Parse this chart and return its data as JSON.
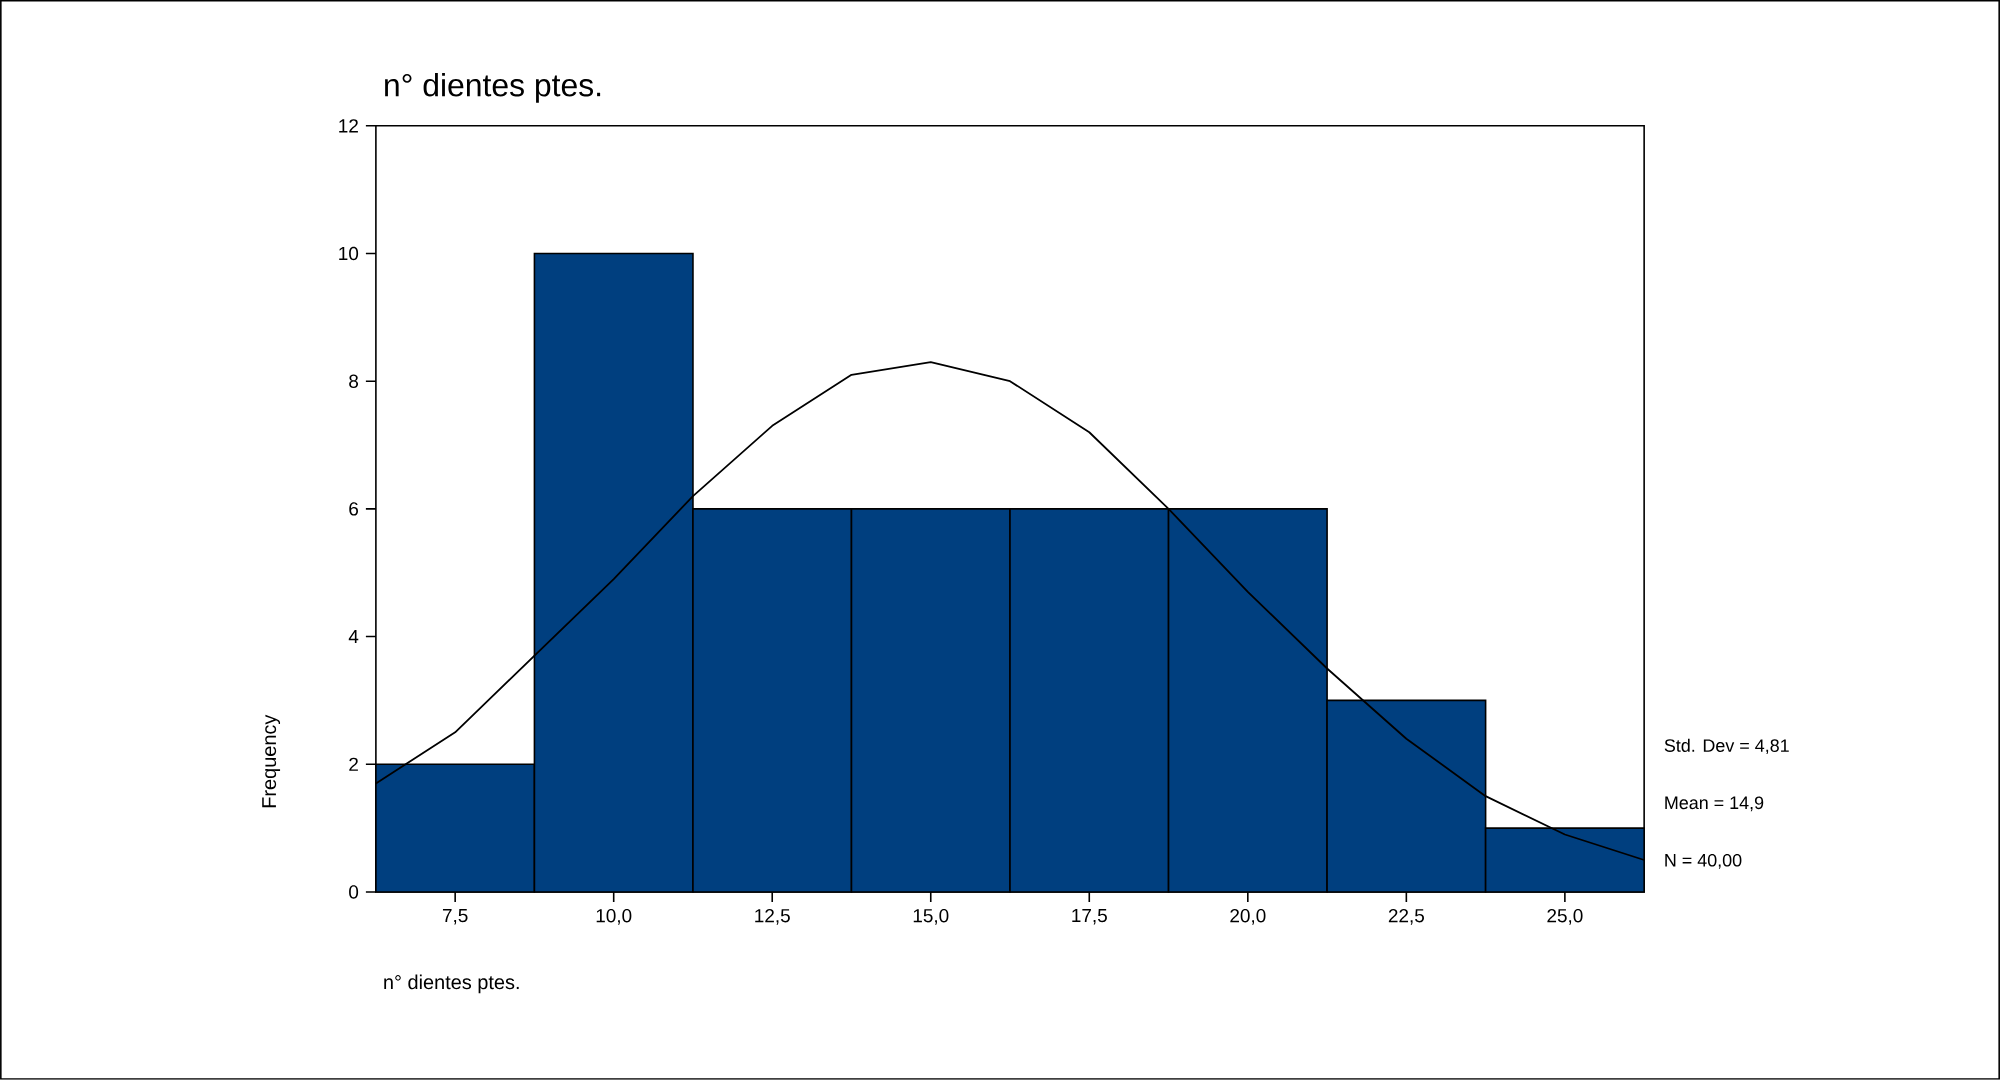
{
  "chart_data": {
    "type": "histogram",
    "title": "n° dientes ptes.",
    "xlabel": "n° dientes ptes.",
    "ylabel": "Frequency",
    "bins": [
      6.25,
      8.75,
      11.25,
      13.75,
      16.25,
      18.75,
      21.25,
      23.75,
      26.25
    ],
    "values": [
      2,
      10,
      6,
      6,
      6,
      6,
      3,
      1
    ],
    "color": "#003f7f",
    "series": [
      {
        "type": "line",
        "color": "#000000",
        "x": [
          6.25,
          7.5,
          8.75,
          10,
          11.25,
          12.5,
          13.75,
          15,
          16.25,
          17.5,
          18.75,
          20,
          21.25,
          22.5,
          23.75,
          25,
          26.25
        ],
        "values": [
          1.7,
          2.5,
          3.7,
          4.9,
          6.2,
          7.3,
          8.1,
          8.3,
          8.0,
          7.2,
          6.0,
          4.7,
          3.5,
          2.4,
          1.5,
          0.9,
          0.5
        ]
      }
    ],
    "xlim": [
      6.25,
      26.25
    ],
    "ylim": [
      0,
      12
    ],
    "xticks": [
      {
        "value": 7.5,
        "label": "7,5"
      },
      {
        "value": 10,
        "label": "10,0"
      },
      {
        "value": 12.5,
        "label": "12,5"
      },
      {
        "value": 15,
        "label": "15,0"
      },
      {
        "value": 17.5,
        "label": "17,5"
      },
      {
        "value": 20,
        "label": "20,0"
      },
      {
        "value": 22.5,
        "label": "22,5"
      },
      {
        "value": 25,
        "label": "25,0"
      }
    ],
    "yticks": [
      0,
      2,
      4,
      6,
      8,
      10,
      12
    ],
    "annotations": [
      "Std. Dev = 4,81",
      "Mean = 14,9",
      "N = 40,00"
    ]
  }
}
